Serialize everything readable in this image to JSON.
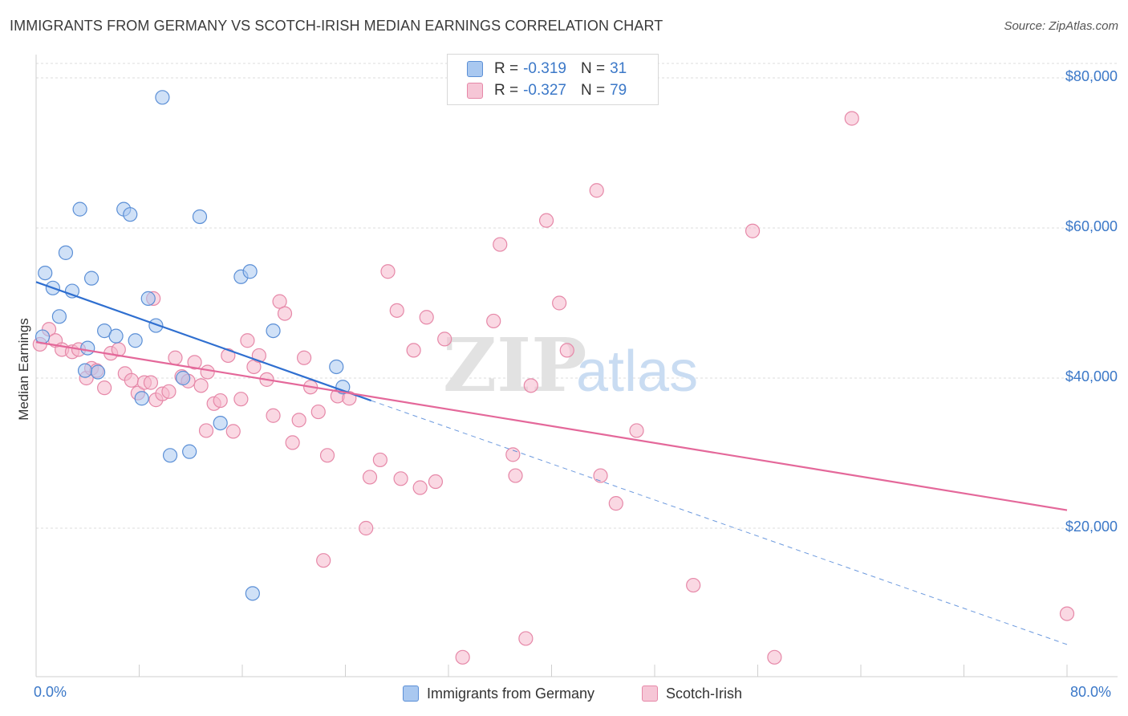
{
  "title": "IMMIGRANTS FROM GERMANY VS SCOTCH-IRISH MEDIAN EARNINGS CORRELATION CHART",
  "source": "Source: ZipAtlas.com",
  "watermark": {
    "zip": "ZIP",
    "atlas": "atlas"
  },
  "legend": {
    "rows": [
      {
        "r_label": "R =",
        "r_value": "-0.319",
        "n_label": "N =",
        "n_value": "31"
      },
      {
        "r_label": "R =",
        "r_value": "-0.327",
        "n_label": "N =",
        "n_value": "79"
      }
    ]
  },
  "bottom_legend": {
    "series1": "Immigrants from Germany",
    "series2": "Scotch-Irish"
  },
  "colors": {
    "blue_fill": "#a9c8f0",
    "blue_stroke": "#5b8fd6",
    "blue_line": "#2f6fd0",
    "pink_fill": "#f6b8cc",
    "pink_stroke": "#e688a8",
    "pink_line": "#e4689a",
    "axis_label": "#3b78c8",
    "grid": "#dcdcdc"
  },
  "chart_data": {
    "type": "scatter",
    "title": "IMMIGRANTS FROM GERMANY VS SCOTCH-IRISH MEDIAN EARNINGS CORRELATION CHART",
    "xlabel": "",
    "ylabel": "Median Earnings",
    "x_tick_labels": [
      "0.0%",
      "80.0%"
    ],
    "y_tick_labels": [
      "$20,000",
      "$40,000",
      "$60,000",
      "$80,000"
    ],
    "y_ticks": [
      20000,
      40000,
      60000,
      80000
    ],
    "xlim": [
      0,
      80
    ],
    "ylim": [
      0,
      82000
    ],
    "grid": true,
    "series": [
      {
        "name": "Immigrants from Germany",
        "color": "#a9c8f0",
        "points": [
          [
            0.5,
            45500
          ],
          [
            0.7,
            54000
          ],
          [
            1.3,
            52000
          ],
          [
            1.8,
            48200
          ],
          [
            2.3,
            56700
          ],
          [
            2.8,
            51600
          ],
          [
            3.4,
            62500
          ],
          [
            3.8,
            41000
          ],
          [
            4.3,
            53300
          ],
          [
            4.8,
            40800
          ],
          [
            5.3,
            46300
          ],
          [
            6.2,
            45600
          ],
          [
            6.8,
            62500
          ],
          [
            7.3,
            61800
          ],
          [
            7.7,
            45000
          ],
          [
            8.2,
            37300
          ],
          [
            8.7,
            50600
          ],
          [
            9.3,
            47000
          ],
          [
            9.8,
            77400
          ],
          [
            10.4,
            29700
          ],
          [
            11.4,
            40000
          ],
          [
            11.9,
            30200
          ],
          [
            12.7,
            61500
          ],
          [
            14.3,
            34000
          ],
          [
            15.9,
            53500
          ],
          [
            16.6,
            54200
          ],
          [
            16.8,
            11300
          ],
          [
            18.4,
            46300
          ],
          [
            23.3,
            41500
          ],
          [
            23.8,
            38800
          ],
          [
            4.0,
            44000
          ]
        ],
        "trend": {
          "x": [
            0,
            26
          ],
          "y": [
            52800,
            37000
          ],
          "dashed_to": [
            80,
            4500
          ]
        }
      },
      {
        "name": "Scotch-Irish",
        "color": "#f6b8cc",
        "points": [
          [
            0.3,
            44500
          ],
          [
            1.0,
            46500
          ],
          [
            1.5,
            45000
          ],
          [
            2.0,
            43800
          ],
          [
            2.8,
            43500
          ],
          [
            3.3,
            43800
          ],
          [
            3.9,
            40000
          ],
          [
            4.3,
            41300
          ],
          [
            4.7,
            41000
          ],
          [
            5.3,
            38700
          ],
          [
            5.8,
            43300
          ],
          [
            6.4,
            43800
          ],
          [
            6.9,
            40600
          ],
          [
            7.4,
            39700
          ],
          [
            7.9,
            38000
          ],
          [
            8.4,
            39400
          ],
          [
            8.9,
            39400
          ],
          [
            9.3,
            37100
          ],
          [
            9.8,
            37900
          ],
          [
            10.3,
            38200
          ],
          [
            10.8,
            42700
          ],
          [
            11.3,
            40200
          ],
          [
            11.8,
            39600
          ],
          [
            12.3,
            42100
          ],
          [
            12.8,
            39000
          ],
          [
            13.3,
            40800
          ],
          [
            13.8,
            36600
          ],
          [
            14.3,
            37000
          ],
          [
            14.9,
            43000
          ],
          [
            15.3,
            32900
          ],
          [
            15.9,
            37200
          ],
          [
            16.4,
            45000
          ],
          [
            16.9,
            41500
          ],
          [
            17.3,
            43000
          ],
          [
            17.9,
            39800
          ],
          [
            18.4,
            35000
          ],
          [
            18.9,
            50200
          ],
          [
            19.3,
            48600
          ],
          [
            19.9,
            31400
          ],
          [
            20.4,
            34400
          ],
          [
            20.8,
            42700
          ],
          [
            21.3,
            38800
          ],
          [
            21.9,
            35500
          ],
          [
            22.3,
            15700
          ],
          [
            22.6,
            29700
          ],
          [
            23.4,
            37600
          ],
          [
            24.3,
            37300
          ],
          [
            25.6,
            20000
          ],
          [
            25.9,
            26800
          ],
          [
            26.7,
            29100
          ],
          [
            27.3,
            54200
          ],
          [
            28.0,
            49000
          ],
          [
            28.3,
            26600
          ],
          [
            29.3,
            43700
          ],
          [
            29.8,
            25400
          ],
          [
            30.3,
            48100
          ],
          [
            31.0,
            26200
          ],
          [
            31.7,
            45200
          ],
          [
            33.1,
            2800
          ],
          [
            35.5,
            47600
          ],
          [
            36.0,
            57800
          ],
          [
            37.0,
            29800
          ],
          [
            37.2,
            27000
          ],
          [
            38.0,
            5300
          ],
          [
            38.4,
            39000
          ],
          [
            39.6,
            61000
          ],
          [
            40.6,
            50000
          ],
          [
            41.2,
            43700
          ],
          [
            43.5,
            65000
          ],
          [
            43.8,
            27000
          ],
          [
            45.0,
            23300
          ],
          [
            46.6,
            33000
          ],
          [
            51.0,
            12400
          ],
          [
            55.6,
            59600
          ],
          [
            57.3,
            2800
          ],
          [
            63.3,
            74600
          ],
          [
            80.0,
            8600
          ],
          [
            13.2,
            33000
          ],
          [
            9.1,
            50600
          ]
        ],
        "trend": {
          "x": [
            0,
            80
          ],
          "y": [
            44800,
            22400
          ]
        }
      }
    ],
    "legend_placement": "top-center",
    "source": "Source: ZipAtlas.com"
  }
}
